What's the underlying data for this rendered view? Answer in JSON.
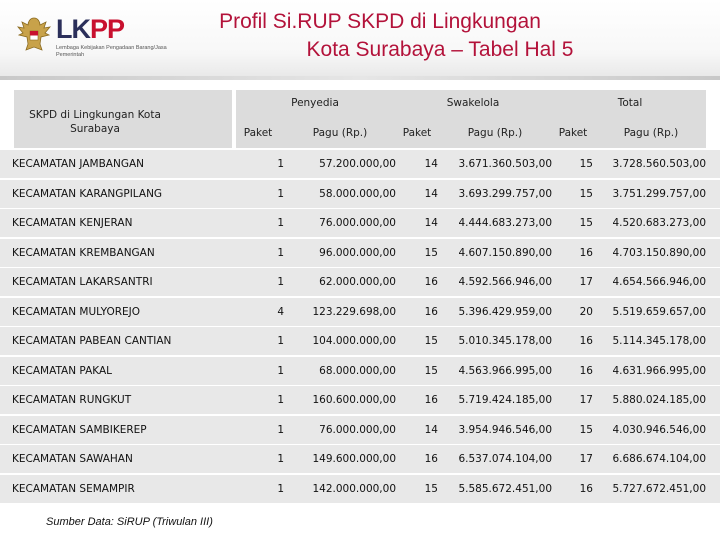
{
  "logo": {
    "word_main": "LK",
    "word_accent": "PP",
    "subtitle": "Lembaga Kebijakan Pengadaan Barang/Jasa Pemerintah",
    "emblem": "garuda-emblem-icon"
  },
  "title": {
    "line1": "Profil Si.RUP SKPD di Lingkungan",
    "line2": "Kota Surabaya – Tabel Hal 5"
  },
  "table": {
    "row_header": "SKPD di Lingkungan Kota Surabaya",
    "groups": [
      "Penyedia",
      "Swakelola",
      "Total"
    ],
    "subheaders": [
      "Paket",
      "Pagu (Rp.)",
      "Paket",
      "Pagu (Rp.)",
      "Paket",
      "Pagu (Rp.)"
    ],
    "rows": [
      {
        "name": "KECAMATAN JAMBANGAN",
        "pp": "1",
        "pr": "57.200.000,00",
        "sp": "14",
        "sr": "3.671.360.503,00",
        "tp": "15",
        "tr": "3.728.560.503,00"
      },
      {
        "name": "KECAMATAN KARANGPILANG",
        "pp": "1",
        "pr": "58.000.000,00",
        "sp": "14",
        "sr": "3.693.299.757,00",
        "tp": "15",
        "tr": "3.751.299.757,00"
      },
      {
        "name": "KECAMATAN KENJERAN",
        "pp": "1",
        "pr": "76.000.000,00",
        "sp": "14",
        "sr": "4.444.683.273,00",
        "tp": "15",
        "tr": "4.520.683.273,00"
      },
      {
        "name": "KECAMATAN KREMBANGAN",
        "pp": "1",
        "pr": "96.000.000,00",
        "sp": "15",
        "sr": "4.607.150.890,00",
        "tp": "16",
        "tr": "4.703.150.890,00"
      },
      {
        "name": "KECAMATAN LAKARSANTRI",
        "pp": "1",
        "pr": "62.000.000,00",
        "sp": "16",
        "sr": "4.592.566.946,00",
        "tp": "17",
        "tr": "4.654.566.946,00"
      },
      {
        "name": "KECAMATAN MULYOREJO",
        "pp": "4",
        "pr": "123.229.698,00",
        "sp": "16",
        "sr": "5.396.429.959,00",
        "tp": "20",
        "tr": "5.519.659.657,00"
      },
      {
        "name": "KECAMATAN PABEAN CANTIAN",
        "pp": "1",
        "pr": "104.000.000,00",
        "sp": "15",
        "sr": "5.010.345.178,00",
        "tp": "16",
        "tr": "5.114.345.178,00"
      },
      {
        "name": "KECAMATAN PAKAL",
        "pp": "1",
        "pr": "68.000.000,00",
        "sp": "15",
        "sr": "4.563.966.995,00",
        "tp": "16",
        "tr": "4.631.966.995,00"
      },
      {
        "name": "KECAMATAN RUNGKUT",
        "pp": "1",
        "pr": "160.600.000,00",
        "sp": "16",
        "sr": "5.719.424.185,00",
        "tp": "17",
        "tr": "5.880.024.185,00"
      },
      {
        "name": "KECAMATAN SAMBIKEREP",
        "pp": "1",
        "pr": "76.000.000,00",
        "sp": "14",
        "sr": "3.954.946.546,00",
        "tp": "15",
        "tr": "4.030.946.546,00"
      },
      {
        "name": "KECAMATAN SAWAHAN",
        "pp": "1",
        "pr": "149.600.000,00",
        "sp": "16",
        "sr": "6.537.074.104,00",
        "tp": "17",
        "tr": "6.686.674.104,00"
      },
      {
        "name": "KECAMATAN SEMAMPIR",
        "pp": "1",
        "pr": "142.000.000,00",
        "sp": "15",
        "sr": "5.585.672.451,00",
        "tp": "16",
        "tr": "5.727.672.451,00"
      }
    ]
  },
  "footer": {
    "source": "Sumber Data: SiRUP (Triwulan III)"
  },
  "colors": {
    "title": "#b3123a",
    "logo_dark": "#2b2f5a",
    "logo_accent": "#c8102e",
    "header_cell": "#dcdcdc",
    "row_bg": "#e8e8e8"
  }
}
